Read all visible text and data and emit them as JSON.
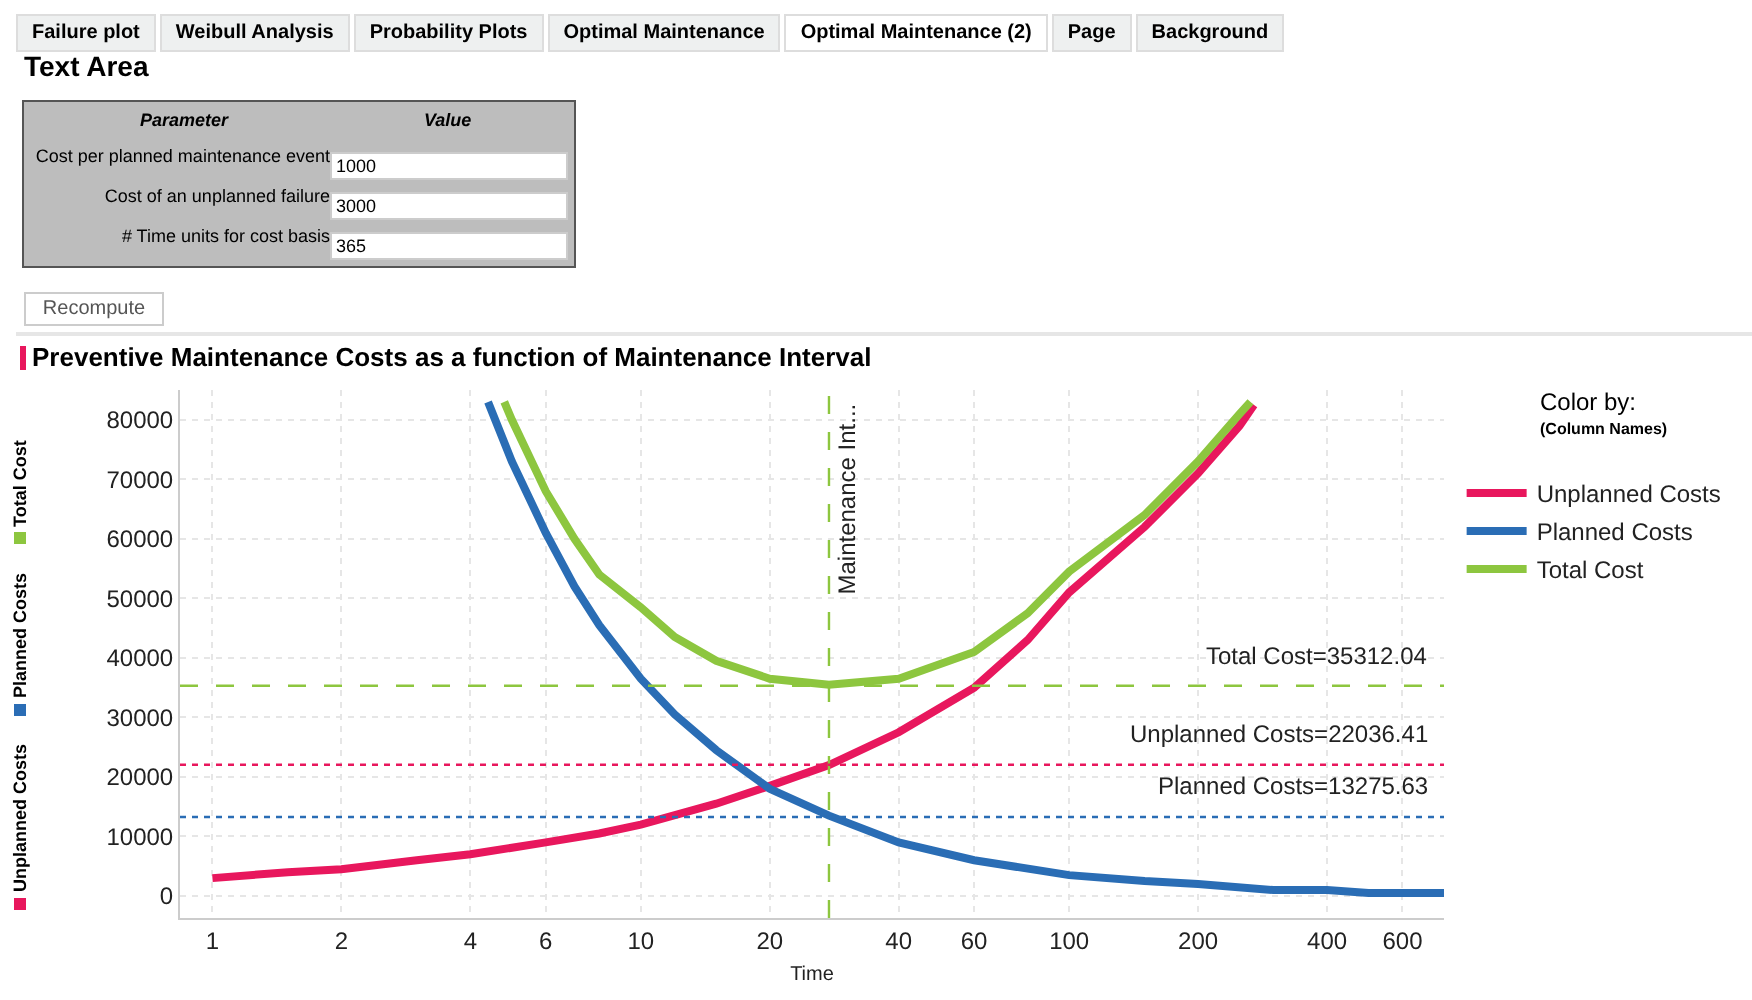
{
  "chart_data": {
    "type": "line",
    "title": "Preventive Maintenance Costs as a function of Maintenance Interval",
    "xlabel": "Time",
    "legend_title": "Color by:",
    "annotations": [
      "Failure plot",
      "Weibull Analysis",
      "Probability Plots",
      "Optimal Maintenance",
      "Optimal Maintenance (2)",
      "Page",
      "Background",
      "Text Area",
      "Parameter",
      "Value",
      "Cost per planned maintenance event",
      "1000",
      "Cost of an unplanned failure",
      "3000",
      "# Time units for cost basis",
      "365",
      "Recompute",
      "(Column Names)"
    ],
    "series": [
      {
        "name": "Unplanned Costs",
        "color": "#e8175d",
        "x": [
          1,
          1.5,
          2,
          3,
          4,
          6,
          8,
          10,
          15,
          20,
          27.5,
          40,
          60,
          80,
          100,
          150,
          200,
          250,
          270
        ],
        "values": [
          3000,
          4000,
          4500,
          6000,
          7000,
          9000,
          10500,
          12000,
          15500,
          18500,
          22000,
          27500,
          35000,
          43000,
          51000,
          62000,
          71000,
          79000,
          82500
        ]
      },
      {
        "name": "Planned Costs",
        "color": "#2a6db5",
        "x": [
          4.4,
          5,
          6,
          7,
          8,
          10,
          12,
          15,
          20,
          27.5,
          40,
          60,
          100,
          150,
          200,
          300,
          400,
          500,
          750
        ],
        "values": [
          83000,
          73000,
          61000,
          52000,
          45500,
          36500,
          30500,
          24500,
          18000,
          13500,
          9000,
          6000,
          3500,
          2500,
          2000,
          1000,
          1000,
          500,
          500
        ]
      },
      {
        "name": "Total Cost",
        "color": "#8dc63f",
        "x": [
          4.8,
          5,
          6,
          7,
          8,
          10,
          12,
          15,
          20,
          27.5,
          40,
          60,
          80,
          100,
          150,
          200,
          250,
          265
        ],
        "values": [
          83000,
          80000,
          68000,
          60000,
          54000,
          48500,
          43500,
          39500,
          36500,
          35500,
          36500,
          41000,
          47500,
          54500,
          64000,
          73000,
          81000,
          83000
        ]
      }
    ],
    "xlim": [
      0.84,
      750
    ],
    "ylim": [
      -3700,
      85000
    ],
    "log": "x",
    "xticks": [
      1,
      2,
      4,
      6,
      10,
      20,
      40,
      60,
      100,
      200,
      400,
      600
    ],
    "yticks": [
      0,
      10000,
      20000,
      30000,
      40000,
      50000,
      60000,
      70000,
      80000
    ],
    "ref_lines": [
      {
        "axis": "x",
        "value": 27.5,
        "label": "Maintenance Int...",
        "color": "#8dc63f",
        "line_style": "dashed"
      },
      {
        "axis": "y",
        "value": 35312.04,
        "label": "Total Cost=35312.04",
        "color": "#8dc63f",
        "line_style": "dashed"
      },
      {
        "axis": "y",
        "value": 22036.41,
        "label": "Unplanned Costs=22036.41",
        "color": "#e8175d",
        "line_style": "dotted"
      },
      {
        "axis": "y",
        "value": 13275.63,
        "label": "Planned Costs=13275.63",
        "color": "#2a6db5",
        "line_style": "dotted"
      }
    ],
    "grid": true,
    "legend": "top right",
    "marker": "none",
    "line_style": "solid"
  }
}
